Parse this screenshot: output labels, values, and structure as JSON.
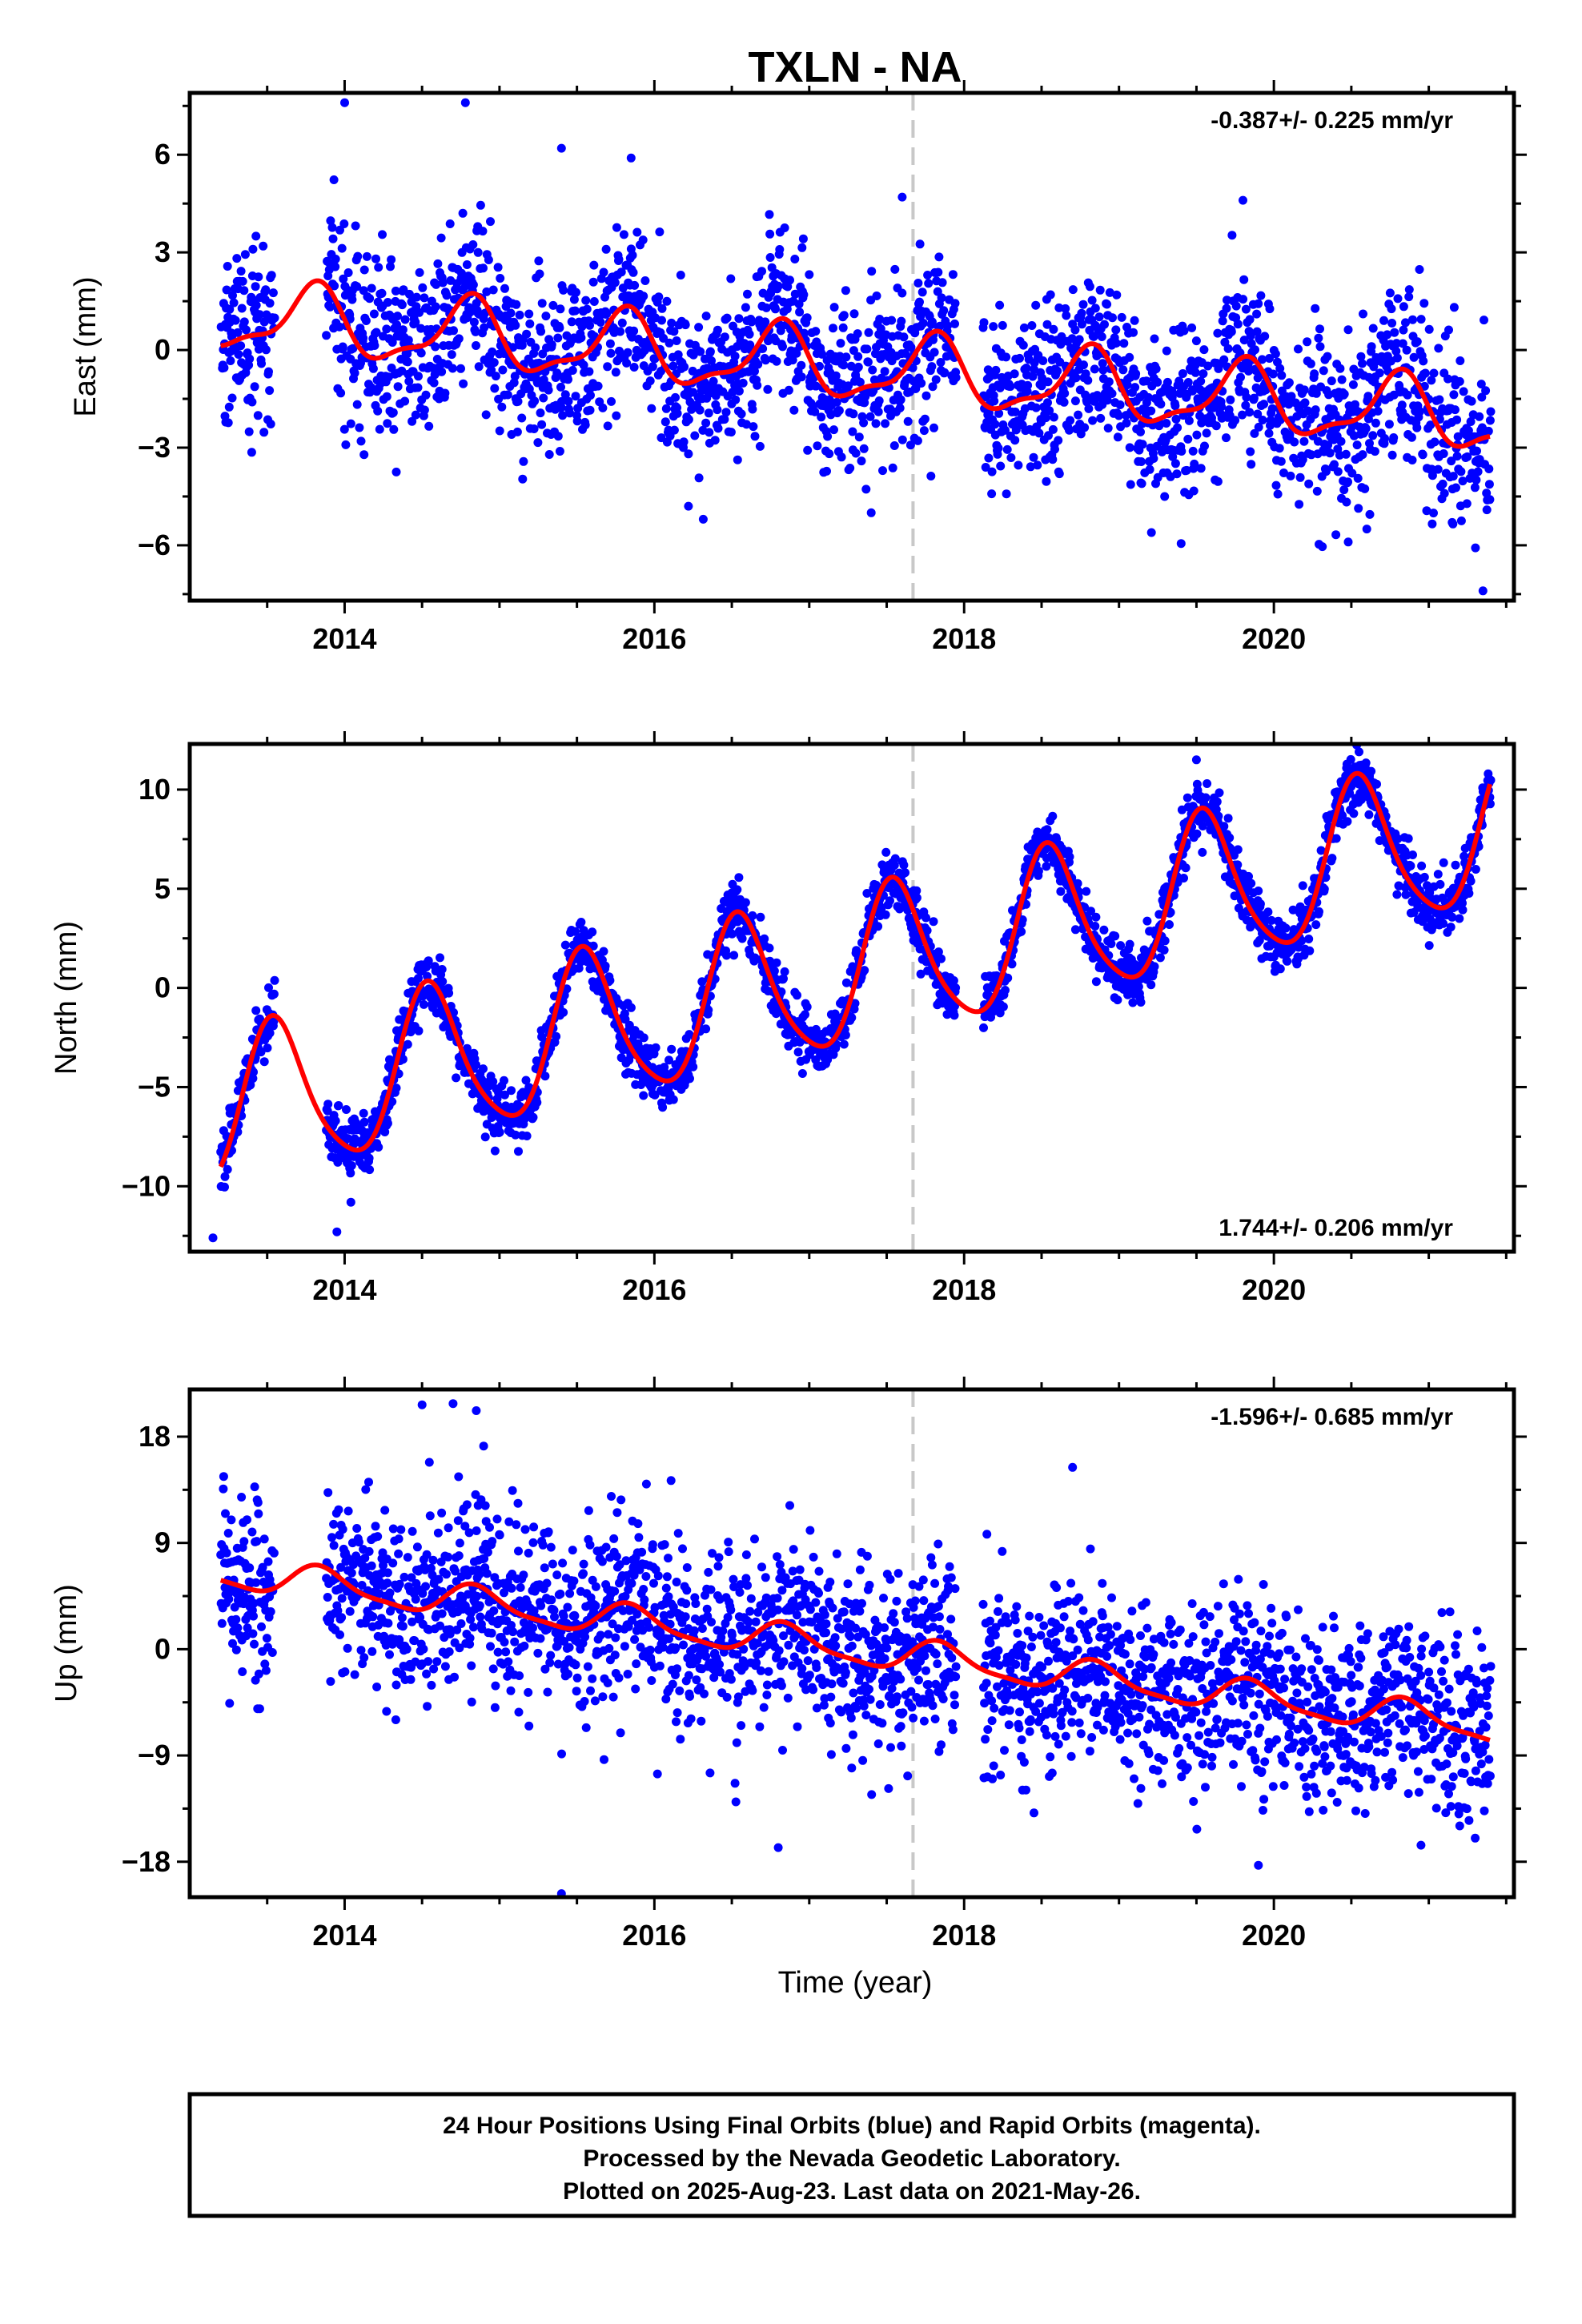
{
  "title": "TXLN - NA",
  "xlabel": "Time (year)",
  "footer": {
    "line1": "24 Hour Positions Using Final Orbits (blue) and Rapid Orbits (magenta).",
    "line2": "Processed by the Nevada Geodetic Laboratory.",
    "line3": "Plotted on 2025-Aug-23. Last data on 2021-May-26."
  },
  "colors": {
    "points": "#0000ff",
    "fit": "#ff0000",
    "marker": "#c8c8c8"
  },
  "chart_data": [
    {
      "type": "scatter",
      "name": "east",
      "ylabel": "East (mm)",
      "rate": "-0.387+/- 0.225 mm/yr",
      "rate_position": "top-right",
      "xlim": [
        2013.0,
        2021.55
      ],
      "ylim": [
        -7.7,
        7.9
      ],
      "xticks": [
        2014,
        2016,
        2018,
        2020
      ],
      "xtick_labels": [
        "2014",
        "2016",
        "2018",
        "2020"
      ],
      "yticks": [
        -6,
        -3,
        0,
        3,
        6
      ],
      "ytick_labels": [
        "−6",
        "−3",
        "0",
        "3",
        "6"
      ],
      "vertical_marker_x": 2017.67,
      "fit": {
        "intercept": 1.05,
        "slope": -0.387,
        "annual_amplitude": 1.0,
        "annual_peak": 0.8,
        "semiannual_amplitude": 0.35,
        "semiannual_peak": 0.85,
        "noise_sd": 1.3
      },
      "outliers": [
        [
          2014.0,
          7.6
        ],
        [
          2014.78,
          7.6
        ],
        [
          2015.4,
          6.2
        ],
        [
          2015.85,
          5.9
        ],
        [
          2017.6,
          4.7
        ],
        [
          2019.8,
          4.6
        ],
        [
          2016.22,
          -4.8
        ],
        [
          2020.48,
          -5.9
        ],
        [
          2020.6,
          -5.5
        ],
        [
          2021.35,
          -7.4
        ]
      ]
    },
    {
      "type": "scatter",
      "name": "north",
      "ylabel": "North (mm)",
      "rate": "1.744+/- 0.206 mm/yr",
      "rate_position": "bottom-right",
      "xlim": [
        2013.0,
        2021.55
      ],
      "ylim": [
        -13.3,
        12.3
      ],
      "xticks": [
        2014,
        2016,
        2018,
        2020
      ],
      "xtick_labels": [
        "2014",
        "2016",
        "2018",
        "2020"
      ],
      "yticks": [
        -10,
        -5,
        0,
        5,
        10
      ],
      "ytick_labels": [
        "−10",
        "−5",
        "0",
        "5",
        "10"
      ],
      "vertical_marker_x": 2017.67,
      "fit": {
        "intercept": -6.3,
        "slope": 1.744,
        "annual_amplitude": 3.8,
        "annual_peak": 0.55,
        "semiannual_amplitude": 0.6,
        "semiannual_peak": 0.5,
        "noise_sd": 0.75
      },
      "outliers": [
        [
          2013.15,
          -12.6
        ],
        [
          2013.95,
          -12.3
        ],
        [
          2019.5,
          11.5
        ],
        [
          2020.55,
          11.9
        ]
      ]
    },
    {
      "type": "scatter",
      "name": "up",
      "ylabel": "Up (mm)",
      "rate": "-1.596+/- 0.685 mm/yr",
      "rate_position": "top-right",
      "xlim": [
        2013.0,
        2021.55
      ],
      "ylim": [
        -21,
        22
      ],
      "xticks": [
        2014,
        2016,
        2018,
        2020
      ],
      "xtick_labels": [
        "2014",
        "2016",
        "2018",
        "2020"
      ],
      "yticks": [
        -18,
        -9,
        0,
        9,
        18
      ],
      "ytick_labels": [
        "−18",
        "−9",
        "0",
        "9",
        "18"
      ],
      "vertical_marker_x": 2017.67,
      "fit": {
        "intercept": 6.5,
        "slope": -1.596,
        "annual_amplitude": 1.3,
        "annual_peak": 0.85,
        "semiannual_amplitude": 0.35,
        "semiannual_peak": 0.8,
        "noise_sd": 3.8
      },
      "outliers": [
        [
          2014.5,
          20.7
        ],
        [
          2014.7,
          20.8
        ],
        [
          2014.85,
          20.2
        ],
        [
          2015.4,
          -20.7
        ],
        [
          2016.8,
          -16.8
        ],
        [
          2018.7,
          15.4
        ],
        [
          2019.9,
          -18.3
        ],
        [
          2020.95,
          -16.6
        ],
        [
          2021.3,
          -16.0
        ]
      ]
    }
  ]
}
